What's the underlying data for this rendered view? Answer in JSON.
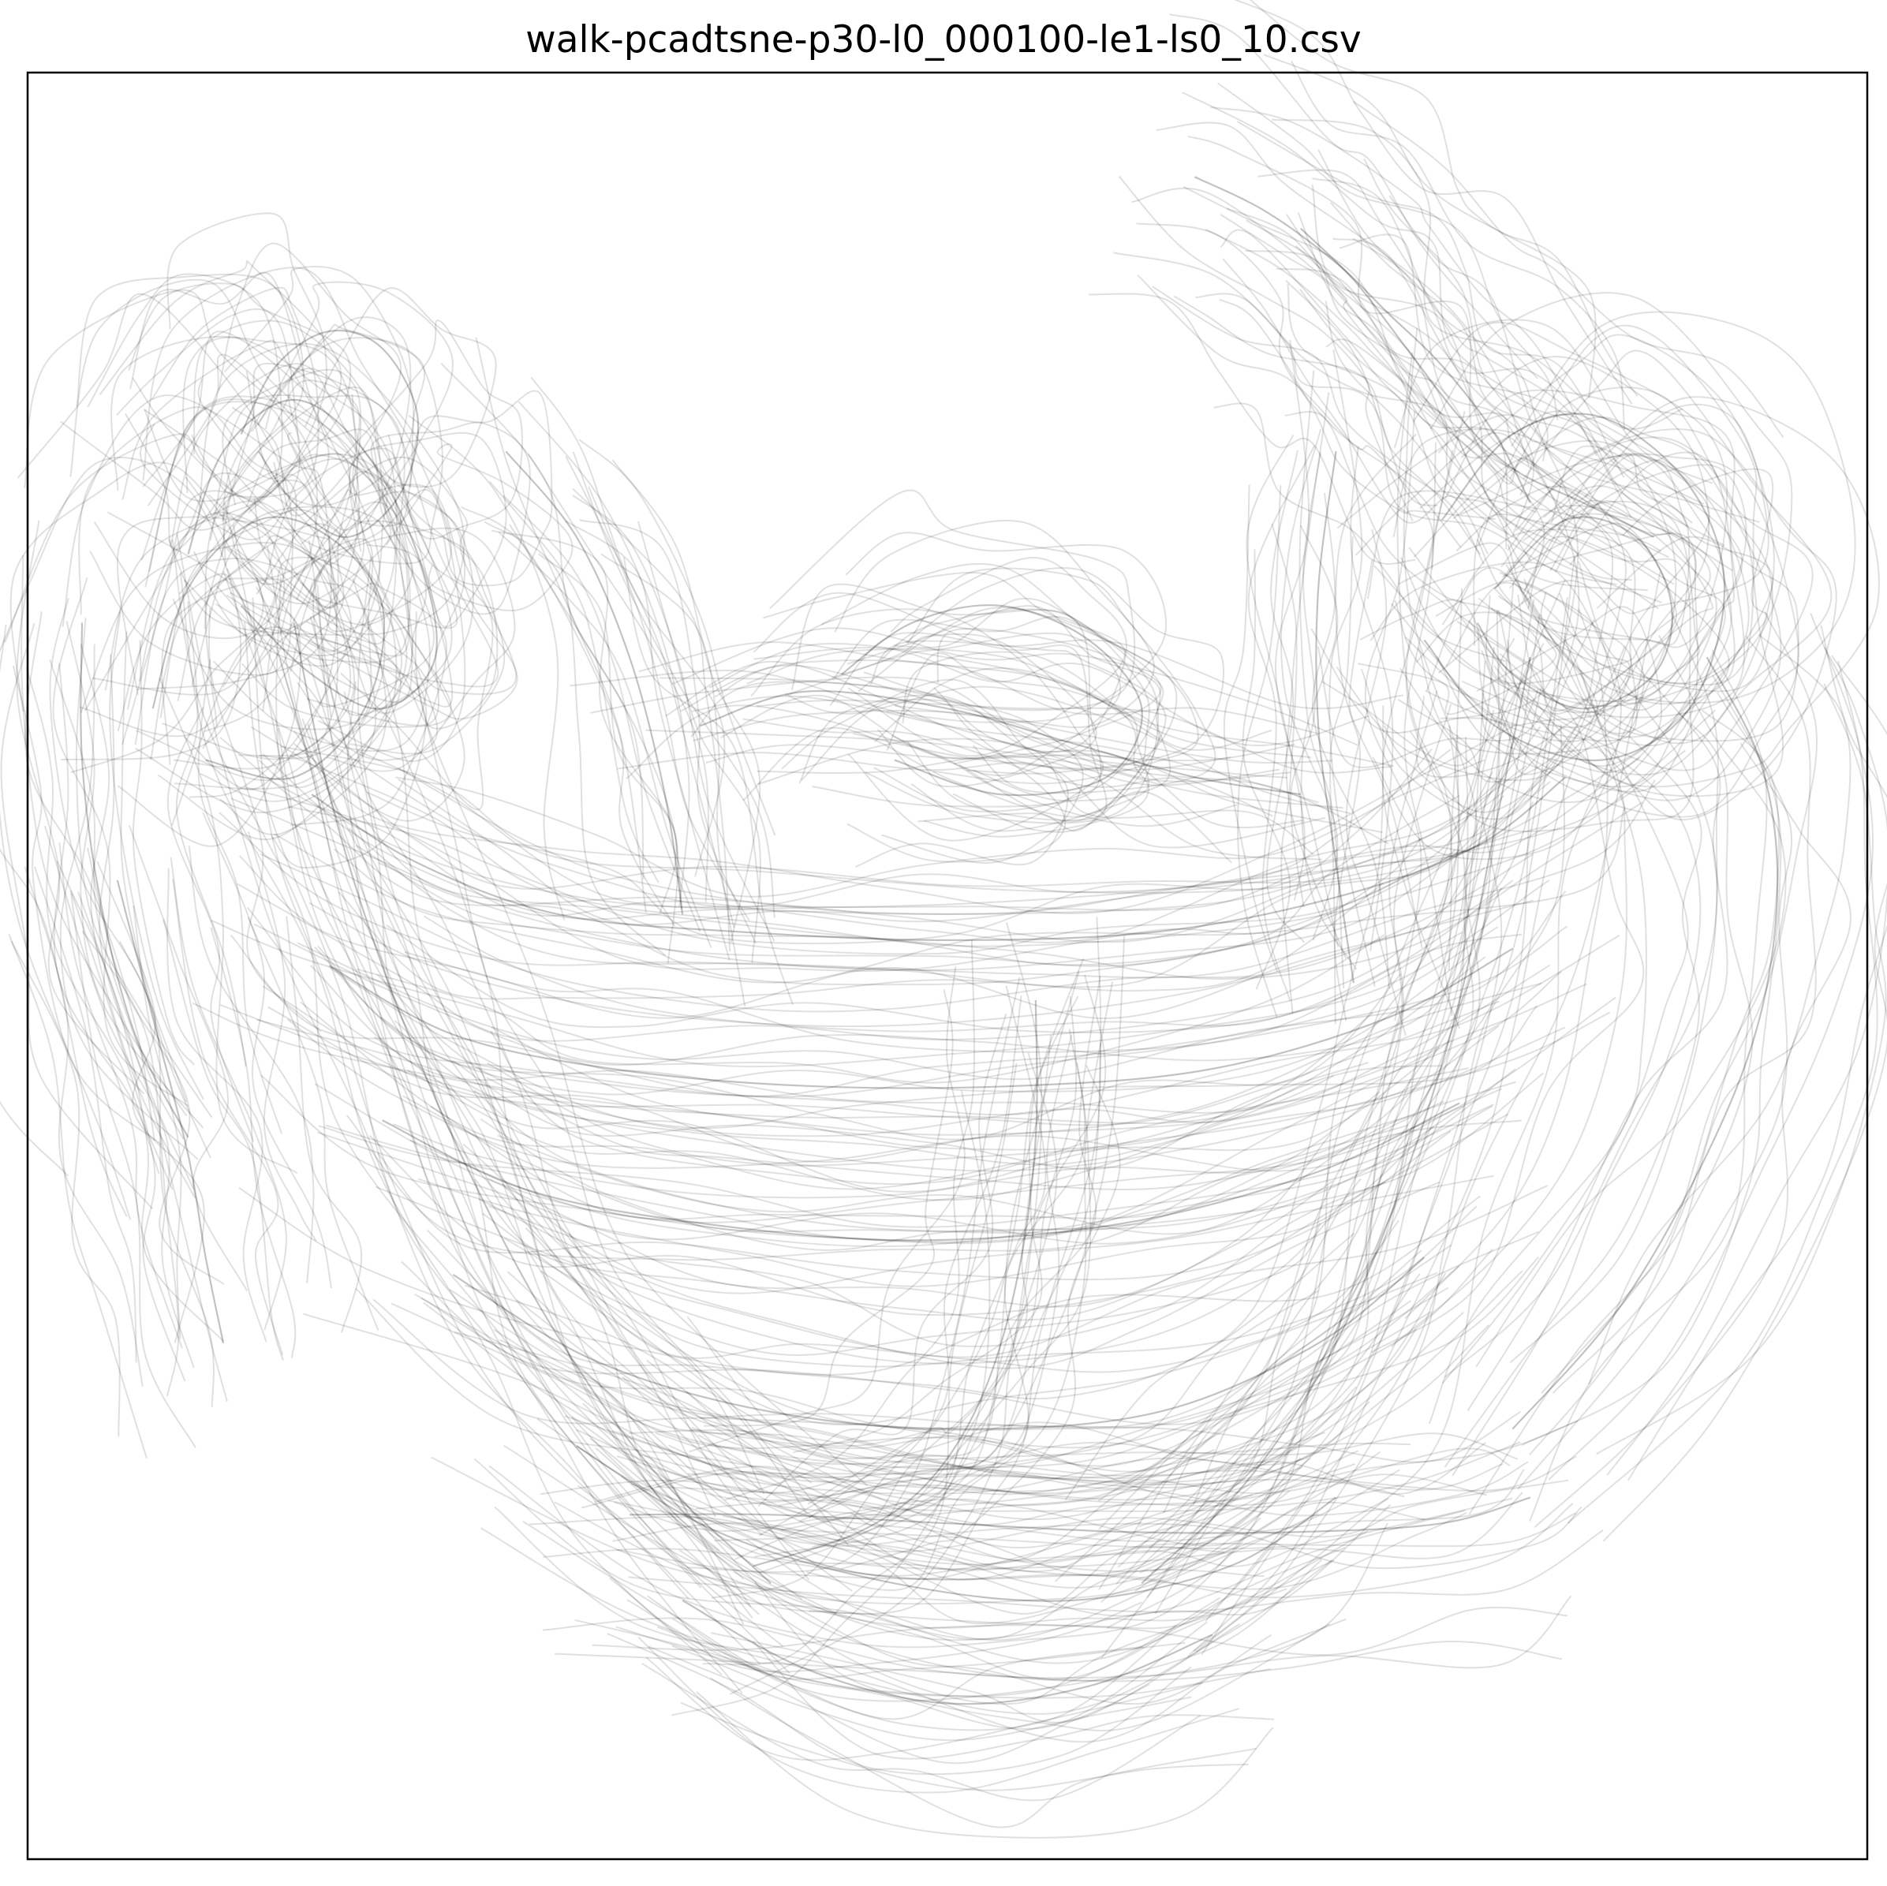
{
  "chart_data": {
    "type": "line",
    "title": "walk-pcadtsne-p30-l0_000100-le1-ls0_10.csv",
    "xlabel": "",
    "ylabel": "",
    "xticks": [],
    "yticks": [],
    "grid": false,
    "legend": "none",
    "line_color": "#000000",
    "line_alpha": 0.12,
    "description_of_marks": "many overlapping semi-transparent trajectory curves",
    "series": [
      {
        "values": [
          [
            -0.8,
            0.62
          ],
          [
            -0.76,
            0.7
          ],
          [
            -0.7,
            0.74
          ],
          [
            -0.64,
            0.72
          ],
          [
            -0.6,
            0.64
          ],
          [
            -0.62,
            0.55
          ],
          [
            -0.68,
            0.5
          ],
          [
            -0.74,
            0.54
          ],
          [
            -0.78,
            0.6
          ]
        ]
      },
      {
        "values": [
          [
            -0.86,
            0.48
          ],
          [
            -0.82,
            0.6
          ],
          [
            -0.74,
            0.66
          ],
          [
            -0.66,
            0.6
          ],
          [
            -0.6,
            0.48
          ],
          [
            -0.58,
            0.36
          ],
          [
            -0.64,
            0.3
          ],
          [
            -0.72,
            0.34
          ],
          [
            -0.8,
            0.42
          ]
        ]
      },
      {
        "values": [
          [
            -0.9,
            0.3
          ],
          [
            -0.86,
            0.44
          ],
          [
            -0.78,
            0.52
          ],
          [
            -0.7,
            0.5
          ],
          [
            -0.64,
            0.42
          ],
          [
            -0.66,
            0.3
          ],
          [
            -0.74,
            0.22
          ],
          [
            -0.84,
            0.24
          ]
        ]
      },
      {
        "values": [
          [
            0.62,
            0.44
          ],
          [
            0.7,
            0.52
          ],
          [
            0.78,
            0.5
          ],
          [
            0.82,
            0.42
          ],
          [
            0.8,
            0.34
          ],
          [
            0.72,
            0.3
          ],
          [
            0.64,
            0.34
          ],
          [
            0.6,
            0.4
          ]
        ]
      },
      {
        "values": [
          [
            0.56,
            0.52
          ],
          [
            0.64,
            0.62
          ],
          [
            0.74,
            0.64
          ],
          [
            0.84,
            0.56
          ],
          [
            0.88,
            0.44
          ],
          [
            0.84,
            0.3
          ],
          [
            0.74,
            0.24
          ],
          [
            0.62,
            0.28
          ],
          [
            0.54,
            0.38
          ]
        ]
      },
      {
        "values": [
          [
            0.4,
            0.86
          ],
          [
            0.46,
            0.8
          ],
          [
            0.52,
            0.72
          ],
          [
            0.58,
            0.64
          ],
          [
            0.64,
            0.58
          ],
          [
            0.72,
            0.54
          ],
          [
            0.8,
            0.5
          ]
        ]
      },
      {
        "values": [
          [
            0.28,
            0.92
          ],
          [
            0.36,
            0.88
          ],
          [
            0.44,
            0.82
          ],
          [
            0.5,
            0.76
          ],
          [
            0.56,
            0.7
          ],
          [
            0.62,
            0.62
          ],
          [
            0.66,
            0.54
          ]
        ]
      },
      {
        "values": [
          [
            -0.72,
            0.2
          ],
          [
            -0.6,
            0.12
          ],
          [
            -0.44,
            0.06
          ],
          [
            -0.24,
            0.04
          ],
          [
            0.0,
            0.03
          ],
          [
            0.24,
            0.04
          ],
          [
            0.44,
            0.08
          ],
          [
            0.6,
            0.14
          ],
          [
            0.7,
            0.22
          ]
        ]
      },
      {
        "values": [
          [
            -0.7,
            0.0
          ],
          [
            -0.56,
            -0.08
          ],
          [
            -0.38,
            -0.12
          ],
          [
            -0.16,
            -0.14
          ],
          [
            0.08,
            -0.14
          ],
          [
            0.3,
            -0.12
          ],
          [
            0.5,
            -0.06
          ],
          [
            0.64,
            0.02
          ]
        ]
      },
      {
        "values": [
          [
            -0.64,
            -0.18
          ],
          [
            -0.48,
            -0.26
          ],
          [
            -0.28,
            -0.3
          ],
          [
            -0.04,
            -0.32
          ],
          [
            0.2,
            -0.3
          ],
          [
            0.42,
            -0.24
          ],
          [
            0.58,
            -0.16
          ]
        ]
      },
      {
        "values": [
          [
            -0.56,
            -0.36
          ],
          [
            -0.4,
            -0.46
          ],
          [
            -0.2,
            -0.52
          ],
          [
            0.02,
            -0.54
          ],
          [
            0.24,
            -0.52
          ],
          [
            0.42,
            -0.44
          ],
          [
            0.54,
            -0.34
          ]
        ]
      },
      {
        "values": [
          [
            -0.42,
            -0.56
          ],
          [
            -0.26,
            -0.66
          ],
          [
            -0.06,
            -0.72
          ],
          [
            0.14,
            -0.74
          ],
          [
            0.32,
            -0.7
          ],
          [
            0.44,
            -0.62
          ]
        ]
      },
      {
        "values": [
          [
            -0.3,
            -0.74
          ],
          [
            -0.16,
            -0.82
          ],
          [
            0.0,
            -0.86
          ],
          [
            0.16,
            -0.84
          ],
          [
            0.3,
            -0.78
          ]
        ]
      },
      {
        "values": [
          [
            -0.74,
            0.4
          ],
          [
            -0.7,
            0.2
          ],
          [
            -0.64,
            0.0
          ],
          [
            -0.56,
            -0.2
          ],
          [
            -0.46,
            -0.4
          ],
          [
            -0.34,
            -0.58
          ],
          [
            -0.2,
            -0.72
          ]
        ]
      },
      {
        "values": [
          [
            0.66,
            0.36
          ],
          [
            0.62,
            0.16
          ],
          [
            0.58,
            -0.04
          ],
          [
            0.52,
            -0.24
          ],
          [
            0.44,
            -0.44
          ],
          [
            0.34,
            -0.6
          ],
          [
            0.22,
            -0.72
          ]
        ]
      },
      {
        "values": [
          [
            -0.36,
            -0.64
          ],
          [
            -0.2,
            -0.64
          ],
          [
            0.0,
            -0.65
          ],
          [
            0.2,
            -0.66
          ],
          [
            0.4,
            -0.66
          ],
          [
            0.56,
            -0.65
          ],
          [
            0.66,
            -0.62
          ]
        ]
      },
      {
        "values": [
          [
            -0.22,
            -0.7
          ],
          [
            -0.1,
            -0.66
          ],
          [
            -0.02,
            -0.6
          ],
          [
            0.04,
            -0.5
          ],
          [
            0.08,
            -0.36
          ],
          [
            0.1,
            -0.2
          ],
          [
            0.1,
            -0.04
          ]
        ]
      },
      {
        "values": [
          [
            -0.94,
            0.1
          ],
          [
            -0.9,
            -0.06
          ],
          [
            -0.86,
            -0.22
          ],
          [
            -0.84,
            -0.34
          ],
          [
            -0.82,
            -0.44
          ]
        ]
      },
      {
        "values": [
          [
            -0.5,
            0.6
          ],
          [
            -0.42,
            0.5
          ],
          [
            -0.36,
            0.36
          ],
          [
            -0.32,
            0.2
          ],
          [
            -0.3,
            0.06
          ]
        ]
      },
      {
        "values": [
          [
            0.44,
            0.6
          ],
          [
            0.42,
            0.44
          ],
          [
            0.42,
            0.28
          ],
          [
            0.44,
            0.12
          ],
          [
            0.46,
            -0.02
          ]
        ]
      },
      {
        "values": [
          [
            -0.12,
            0.34
          ],
          [
            -0.04,
            0.4
          ],
          [
            0.06,
            0.42
          ],
          [
            0.16,
            0.38
          ],
          [
            0.22,
            0.3
          ],
          [
            0.18,
            0.22
          ],
          [
            0.06,
            0.2
          ],
          [
            -0.06,
            0.24
          ]
        ]
      },
      {
        "values": [
          [
            -0.28,
            0.28
          ],
          [
            -0.16,
            0.32
          ],
          [
            0.0,
            0.3
          ],
          [
            0.14,
            0.26
          ],
          [
            0.28,
            0.22
          ],
          [
            0.4,
            0.2
          ]
        ]
      },
      {
        "values": [
          [
            0.86,
            0.36
          ],
          [
            0.92,
            0.24
          ],
          [
            0.94,
            0.1
          ],
          [
            0.92,
            -0.06
          ],
          [
            0.86,
            -0.22
          ],
          [
            0.76,
            -0.4
          ],
          [
            0.64,
            -0.54
          ]
        ]
      },
      {
        "values": [
          [
            -0.98,
            0.4
          ],
          [
            -0.98,
            0.24
          ],
          [
            -0.96,
            0.08
          ],
          [
            -0.92,
            -0.08
          ],
          [
            -0.86,
            -0.2
          ]
        ]
      }
    ]
  }
}
